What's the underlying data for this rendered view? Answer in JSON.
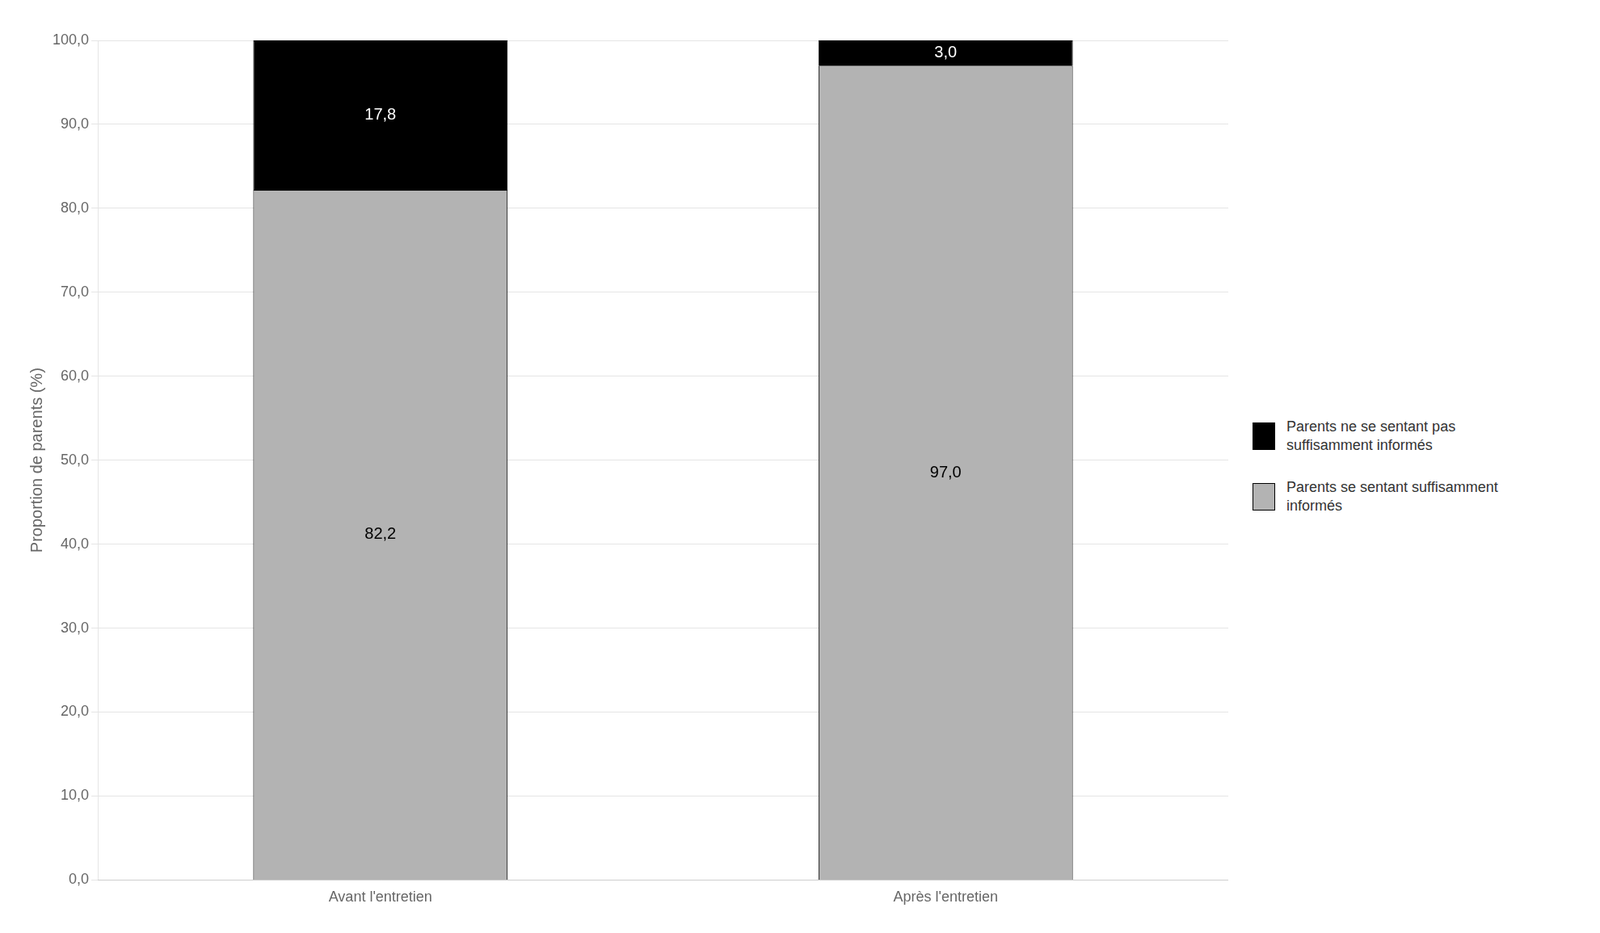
{
  "chart_data": {
    "type": "bar",
    "categories": [
      "Avant l'entretien",
      "Après l'entretien"
    ],
    "series": [
      {
        "name": "Parents se sentant suffisamment\ninformés",
        "color": "#b3b3b3",
        "values": [
          82.2,
          97.0
        ],
        "value_labels": [
          "82,2",
          "97,0"
        ]
      },
      {
        "name": "Parents ne se sentant pas\nsuffisamment informés",
        "color": "#000000",
        "values": [
          17.8,
          3.0
        ],
        "value_labels": [
          "17,8",
          "3,0"
        ]
      }
    ],
    "ylabel": "Proportion de parents (%)",
    "ylim": [
      0,
      100
    ],
    "yticks": [
      {
        "value": 0.0,
        "label": "0,0"
      },
      {
        "value": 10.0,
        "label": "10,0"
      },
      {
        "value": 20.0,
        "label": "20,0"
      },
      {
        "value": 30.0,
        "label": "30,0"
      },
      {
        "value": 40.0,
        "label": "40,0"
      },
      {
        "value": 50.0,
        "label": "50,0"
      },
      {
        "value": 60.0,
        "label": "60,0"
      },
      {
        "value": 70.0,
        "label": "70,0"
      },
      {
        "value": 80.0,
        "label": "80,0"
      },
      {
        "value": 90.0,
        "label": "90,0"
      },
      {
        "value": 100.0,
        "label": "100,0"
      }
    ],
    "grid": true,
    "stacked": true,
    "data_labels": true,
    "legend": "right"
  }
}
